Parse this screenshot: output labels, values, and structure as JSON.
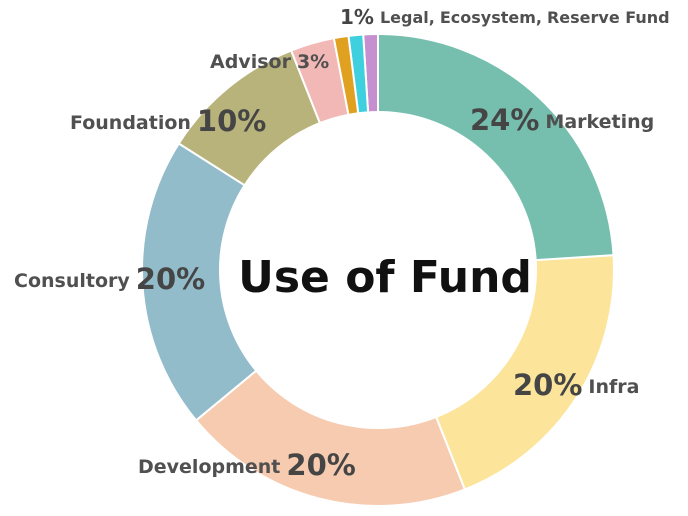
{
  "chart_data": {
    "type": "donut",
    "title": "Use of Fund",
    "categories": [
      "Marketing",
      "Infra",
      "Development",
      "Consultory",
      "Foundation",
      "Advisor",
      "Legal,",
      "Ecosystem,",
      "Reserve Fund"
    ],
    "values": [
      24,
      20,
      20,
      20,
      10,
      3,
      1,
      1,
      1
    ],
    "value_labels": [
      "24%",
      "20%",
      "20%",
      "20%",
      "10%",
      "3%",
      "1%",
      null,
      null
    ],
    "colors": [
      "#76bfae",
      "#fce49a",
      "#f6cbb0",
      "#93bccb",
      "#b8b37a",
      "#f2b8b5",
      "#e0a020",
      "#3fd0e0",
      "#c58fd0"
    ]
  }
}
